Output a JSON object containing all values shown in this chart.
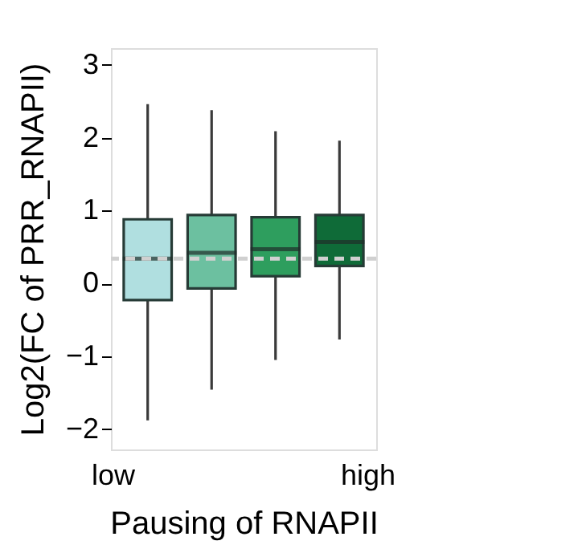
{
  "chart_data": {
    "type": "box",
    "xlabel": "Pausing of RNAPII",
    "ylabel": "Log2(FC of  PRR_RNAPII)",
    "categories": [
      null,
      null,
      null,
      null
    ],
    "colors": [
      "#b0dfe0",
      "#6cc0a0",
      "#2e9e5e",
      "#0f6b38"
    ],
    "boxes": [
      {
        "low": -1.88,
        "q1": -0.23,
        "median": 0.34,
        "q3": 0.88,
        "high": 2.46
      },
      {
        "low": -1.46,
        "q1": -0.07,
        "median": 0.42,
        "q3": 0.94,
        "high": 2.38
      },
      {
        "low": -1.05,
        "q1": 0.1,
        "median": 0.47,
        "q3": 0.91,
        "high": 2.09
      },
      {
        "low": -0.77,
        "q1": 0.24,
        "median": 0.57,
        "q3": 0.94,
        "high": 1.96
      }
    ],
    "ylim": [
      -2.28,
      3.23
    ],
    "yticks": [
      -2,
      -1,
      0,
      1,
      2,
      3
    ],
    "ref_lines": [
      {
        "axis": "y",
        "value": 0.34,
        "color": "#d0d0d0",
        "line_style": "dashed"
      }
    ],
    "annotations": [
      "low",
      "high"
    ],
    "tick_labels": "y"
  }
}
